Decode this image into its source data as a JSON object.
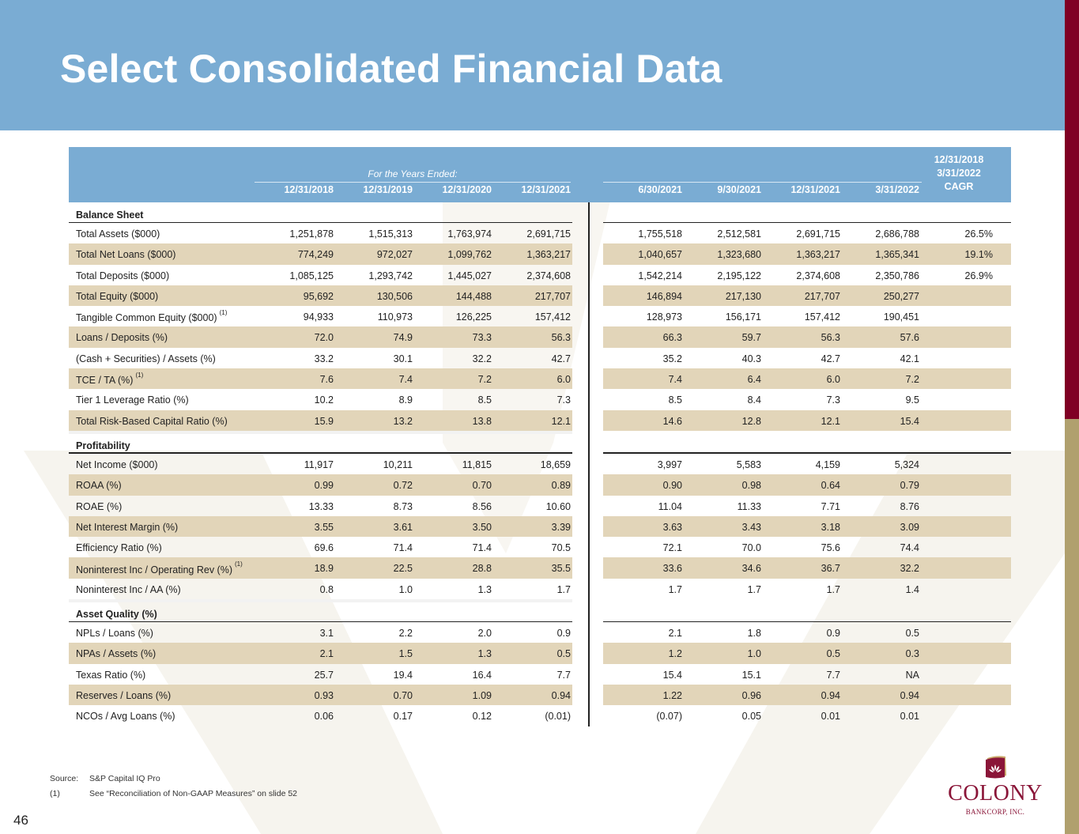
{
  "page": {
    "title": "Select Consolidated Financial Data",
    "page_number": "46",
    "colors": {
      "header_blue": "#7aacd3",
      "row_shade": "#e2d5b9",
      "brand_red": "#800024",
      "brand_gold": "#b0a06e"
    }
  },
  "table": {
    "group_label": "For the Years Ended:",
    "annual_columns": [
      "12/31/2018",
      "12/31/2019",
      "12/31/2020",
      "12/31/2021"
    ],
    "quarter_columns": [
      "6/30/2021",
      "9/30/2021",
      "12/31/2021",
      "3/31/2022"
    ],
    "cagr_header": [
      "12/31/2018",
      "3/31/2022",
      "CAGR"
    ],
    "sections": [
      {
        "name": "Balance Sheet",
        "rows": [
          {
            "label": "Total Assets ($000)",
            "footnote": "",
            "annual": [
              "1,251,878",
              "1,515,313",
              "1,763,974",
              "2,691,715"
            ],
            "quarterly": [
              "1,755,518",
              "2,512,581",
              "2,691,715",
              "2,686,788"
            ],
            "cagr": "26.5%"
          },
          {
            "label": "Total Net Loans ($000)",
            "footnote": "",
            "annual": [
              "774,249",
              "972,027",
              "1,099,762",
              "1,363,217"
            ],
            "quarterly": [
              "1,040,657",
              "1,323,680",
              "1,363,217",
              "1,365,341"
            ],
            "cagr": "19.1%"
          },
          {
            "label": "Total Deposits ($000)",
            "footnote": "",
            "annual": [
              "1,085,125",
              "1,293,742",
              "1,445,027",
              "2,374,608"
            ],
            "quarterly": [
              "1,542,214",
              "2,195,122",
              "2,374,608",
              "2,350,786"
            ],
            "cagr": "26.9%"
          },
          {
            "label": "Total Equity ($000)",
            "footnote": "",
            "annual": [
              "95,692",
              "130,506",
              "144,488",
              "217,707"
            ],
            "quarterly": [
              "146,894",
              "217,130",
              "217,707",
              "250,277"
            ],
            "cagr": ""
          },
          {
            "label": "Tangible Common Equity ($000)",
            "footnote": "(1)",
            "annual": [
              "94,933",
              "110,973",
              "126,225",
              "157,412"
            ],
            "quarterly": [
              "128,973",
              "156,171",
              "157,412",
              "190,451"
            ],
            "cagr": ""
          },
          {
            "label": "Loans / Deposits (%)",
            "footnote": "",
            "annual": [
              "72.0",
              "74.9",
              "73.3",
              "56.3"
            ],
            "quarterly": [
              "66.3",
              "59.7",
              "56.3",
              "57.6"
            ],
            "cagr": ""
          },
          {
            "label": "(Cash + Securities) / Assets (%)",
            "footnote": "",
            "annual": [
              "33.2",
              "30.1",
              "32.2",
              "42.7"
            ],
            "quarterly": [
              "35.2",
              "40.3",
              "42.7",
              "42.1"
            ],
            "cagr": ""
          },
          {
            "label": "TCE / TA (%)",
            "footnote": "(1)",
            "annual": [
              "7.6",
              "7.4",
              "7.2",
              "6.0"
            ],
            "quarterly": [
              "7.4",
              "6.4",
              "6.0",
              "7.2"
            ],
            "cagr": ""
          },
          {
            "label": "Tier 1 Leverage Ratio (%)",
            "footnote": "",
            "annual": [
              "10.2",
              "8.9",
              "8.5",
              "7.3"
            ],
            "quarterly": [
              "8.5",
              "8.4",
              "7.3",
              "9.5"
            ],
            "cagr": ""
          },
          {
            "label": "Total Risk-Based Capital Ratio (%)",
            "footnote": "",
            "annual": [
              "15.9",
              "13.2",
              "13.8",
              "12.1"
            ],
            "quarterly": [
              "14.6",
              "12.8",
              "12.1",
              "15.4"
            ],
            "cagr": ""
          }
        ]
      },
      {
        "name": "Profitability",
        "rows": [
          {
            "label": "Net Income ($000)",
            "footnote": "",
            "annual": [
              "11,917",
              "10,211",
              "11,815",
              "18,659"
            ],
            "quarterly": [
              "3,997",
              "5,583",
              "4,159",
              "5,324"
            ],
            "cagr": ""
          },
          {
            "label": "ROAA (%)",
            "footnote": "",
            "annual": [
              "0.99",
              "0.72",
              "0.70",
              "0.89"
            ],
            "quarterly": [
              "0.90",
              "0.98",
              "0.64",
              "0.79"
            ],
            "cagr": ""
          },
          {
            "label": "ROAE (%)",
            "footnote": "",
            "annual": [
              "13.33",
              "8.73",
              "8.56",
              "10.60"
            ],
            "quarterly": [
              "11.04",
              "11.33",
              "7.71",
              "8.76"
            ],
            "cagr": ""
          },
          {
            "label": "Net Interest Margin (%)",
            "footnote": "",
            "annual": [
              "3.55",
              "3.61",
              "3.50",
              "3.39"
            ],
            "quarterly": [
              "3.63",
              "3.43",
              "3.18",
              "3.09"
            ],
            "cagr": ""
          },
          {
            "label": "Efficiency Ratio (%)",
            "footnote": "",
            "annual": [
              "69.6",
              "71.4",
              "71.4",
              "70.5"
            ],
            "quarterly": [
              "72.1",
              "70.0",
              "75.6",
              "74.4"
            ],
            "cagr": ""
          },
          {
            "label": "Noninterest Inc / Operating Rev (%)",
            "footnote": "(1)",
            "annual": [
              "18.9",
              "22.5",
              "28.8",
              "35.5"
            ],
            "quarterly": [
              "33.6",
              "34.6",
              "36.7",
              "32.2"
            ],
            "cagr": ""
          },
          {
            "label": "Noninterest Inc / AA (%)",
            "footnote": "",
            "annual": [
              "0.8",
              "1.0",
              "1.3",
              "1.7"
            ],
            "quarterly": [
              "1.7",
              "1.7",
              "1.7",
              "1.4"
            ],
            "cagr": ""
          }
        ]
      },
      {
        "name": "Asset Quality (%)",
        "rows": [
          {
            "label": "NPLs / Loans (%)",
            "footnote": "",
            "annual": [
              "3.1",
              "2.2",
              "2.0",
              "0.9"
            ],
            "quarterly": [
              "2.1",
              "1.8",
              "0.9",
              "0.5"
            ],
            "cagr": ""
          },
          {
            "label": "NPAs / Assets (%)",
            "footnote": "",
            "annual": [
              "2.1",
              "1.5",
              "1.3",
              "0.5"
            ],
            "quarterly": [
              "1.2",
              "1.0",
              "0.5",
              "0.3"
            ],
            "cagr": ""
          },
          {
            "label": "Texas Ratio (%)",
            "footnote": "",
            "annual": [
              "25.7",
              "19.4",
              "16.4",
              "7.7"
            ],
            "quarterly": [
              "15.4",
              "15.1",
              "7.7",
              "NA"
            ],
            "cagr": ""
          },
          {
            "label": "Reserves / Loans (%)",
            "footnote": "",
            "annual": [
              "0.93",
              "0.70",
              "1.09",
              "0.94"
            ],
            "quarterly": [
              "1.22",
              "0.96",
              "0.94",
              "0.94"
            ],
            "cagr": ""
          },
          {
            "label": "NCOs / Avg Loans (%)",
            "footnote": "",
            "annual": [
              "0.06",
              "0.17",
              "0.12",
              "(0.01)"
            ],
            "quarterly": [
              "(0.07)",
              "0.05",
              "0.01",
              "0.01"
            ],
            "cagr": ""
          }
        ]
      }
    ]
  },
  "footnotes": [
    {
      "key": "Source:",
      "text": "S&P Capital IQ Pro"
    },
    {
      "key": "(1)",
      "text": "See “Reconciliation of Non-GAAP Measures” on slide 52"
    }
  ],
  "logo": {
    "name": "COLONY",
    "subtitle": "BANKCORP, INC.",
    "icon": "lotus-icon"
  }
}
